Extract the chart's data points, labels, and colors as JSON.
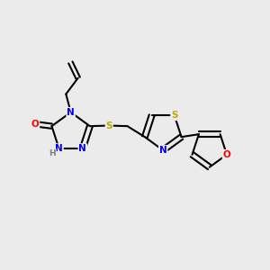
{
  "background_color": "#ebebeb",
  "bond_color": "#000000",
  "atom_colors": {
    "N": "#0000ff",
    "O": "#ff0000",
    "S": "#bbaa00",
    "H": "#808080",
    "C": "#000000"
  },
  "figsize": [
    3.0,
    3.0
  ],
  "dpi": 100
}
